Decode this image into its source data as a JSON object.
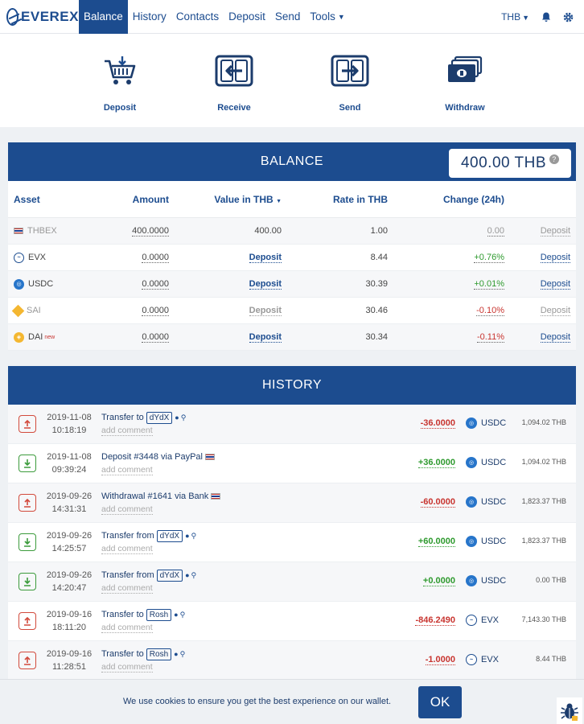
{
  "nav": {
    "logo": "EVEREX",
    "items": [
      {
        "label": "Balance",
        "active": true
      },
      {
        "label": "History",
        "active": false
      },
      {
        "label": "Contacts",
        "active": false
      },
      {
        "label": "Deposit",
        "active": false
      },
      {
        "label": "Send",
        "active": false
      },
      {
        "label": "Tools",
        "active": false
      }
    ],
    "currency": "THB"
  },
  "actions": [
    {
      "label": "Deposit",
      "icon": "deposit-cart-icon"
    },
    {
      "label": "Receive",
      "icon": "receive-phone-icon"
    },
    {
      "label": "Send",
      "icon": "send-phone-icon"
    },
    {
      "label": "Withdraw",
      "icon": "withdraw-money-icon"
    }
  ],
  "balance": {
    "title": "BALANCE",
    "total": "400.00 THB",
    "columns": {
      "asset": "Asset",
      "amount": "Amount",
      "value": "Value in THB",
      "rate": "Rate in THB",
      "change": "Change (24h)"
    },
    "rows": [
      {
        "asset": "THBEX",
        "amount": "400.0000",
        "value": "400.00",
        "rate": "1.00",
        "change": "0.00",
        "deposit": "Deposit",
        "icon": "thailand-flag-icon",
        "color": "#1c3c8f"
      },
      {
        "asset": "EVX",
        "amount": "0.0000",
        "value": "Deposit",
        "rate": "8.44",
        "change": "+0.76%",
        "deposit": "Deposit",
        "icon": "evx-coin-icon",
        "color": "#1c4c8f"
      },
      {
        "asset": "USDC",
        "amount": "0.0000",
        "value": "Deposit",
        "rate": "30.39",
        "change": "+0.01%",
        "deposit": "Deposit",
        "icon": "usdc-coin-icon",
        "color": "#2775ca"
      },
      {
        "asset": "SAI",
        "amount": "0.0000",
        "value": "Deposit",
        "rate": "30.46",
        "change": "-0.10%",
        "deposit": "Deposit",
        "icon": "sai-coin-icon",
        "color": "#f4b731"
      },
      {
        "asset": "DAI",
        "amount": "0.0000",
        "value": "Deposit",
        "rate": "30.34",
        "change": "-0.11%",
        "deposit": "Deposit",
        "icon": "dai-coin-icon",
        "color": "#f4b731",
        "tag": "new"
      }
    ]
  },
  "history": {
    "title": "HISTORY",
    "comment_placeholder": "add comment",
    "rows": [
      {
        "direction": "out",
        "date": "2019-11-08",
        "time": "10:18:19",
        "prefix": "Transfer to",
        "party": "dYdX",
        "amount": "-36.0000",
        "coin": "USDC",
        "value": "1,094.02 THB"
      },
      {
        "direction": "in",
        "date": "2019-11-08",
        "time": "09:39:24",
        "prefix": "Deposit #3448 via PayPal",
        "party": "",
        "amount": "+36.0000",
        "coin": "USDC",
        "value": "1,094.02 THB"
      },
      {
        "direction": "out",
        "date": "2019-09-26",
        "time": "14:31:31",
        "prefix": "Withdrawal #1641 via Bank",
        "party": "",
        "amount": "-60.0000",
        "coin": "USDC",
        "value": "1,823.37 THB"
      },
      {
        "direction": "in",
        "date": "2019-09-26",
        "time": "14:25:57",
        "prefix": "Transfer from",
        "party": "dYdX",
        "amount": "+60.0000",
        "coin": "USDC",
        "value": "1,823.37 THB"
      },
      {
        "direction": "in",
        "date": "2019-09-26",
        "time": "14:20:47",
        "prefix": "Transfer from",
        "party": "dYdX",
        "amount": "+0.0000",
        "coin": "USDC",
        "value": "0.00 THB"
      },
      {
        "direction": "out",
        "date": "2019-09-16",
        "time": "18:11:20",
        "prefix": "Transfer to",
        "party": "Rosh",
        "amount": "-846.2490",
        "coin": "EVX",
        "value": "7,143.30 THB"
      },
      {
        "direction": "out",
        "date": "2019-09-16",
        "time": "11:28:51",
        "prefix": "Transfer to",
        "party": "Rosh",
        "amount": "-1.0000",
        "coin": "EVX",
        "value": "8.44 THB"
      }
    ]
  },
  "cookie": {
    "text": "We use cookies to ensure you get the best experience on our wallet.",
    "ok": "OK"
  }
}
